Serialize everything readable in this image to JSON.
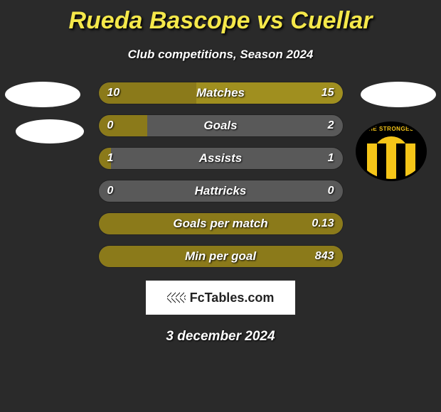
{
  "title": "Rueda Bascope vs Cuellar",
  "subtitle": "Club competitions, Season 2024",
  "colors": {
    "left_bar": "#8b7a1a",
    "right_bar": "#a08f1f",
    "neutral_bar": "#595959",
    "background": "#2a2a2a",
    "title_color": "#f5e84a"
  },
  "fonts": {
    "title_size": 34,
    "subtitle_size": 17,
    "bar_label_size": 17,
    "bar_value_size": 16,
    "date_size": 19
  },
  "bars": [
    {
      "label": "Matches",
      "left_val": "10",
      "right_val": "15",
      "left_pct": 40,
      "right_pct": 60
    },
    {
      "label": "Goals",
      "left_val": "0",
      "right_val": "2",
      "left_pct": 20,
      "right_pct": 0
    },
    {
      "label": "Assists",
      "left_val": "1",
      "right_val": "1",
      "left_pct": 5,
      "right_pct": 0
    },
    {
      "label": "Hattricks",
      "left_val": "0",
      "right_val": "0",
      "left_pct": 0,
      "right_pct": 0
    },
    {
      "label": "Goals per match",
      "left_val": "",
      "right_val": "0.13",
      "left_pct": 100,
      "right_pct": 0
    },
    {
      "label": "Min per goal",
      "left_val": "",
      "right_val": "843",
      "left_pct": 100,
      "right_pct": 0
    }
  ],
  "footer": "FcTables.com",
  "date": "3 december 2024",
  "crest_text": "THE STRONGEST"
}
